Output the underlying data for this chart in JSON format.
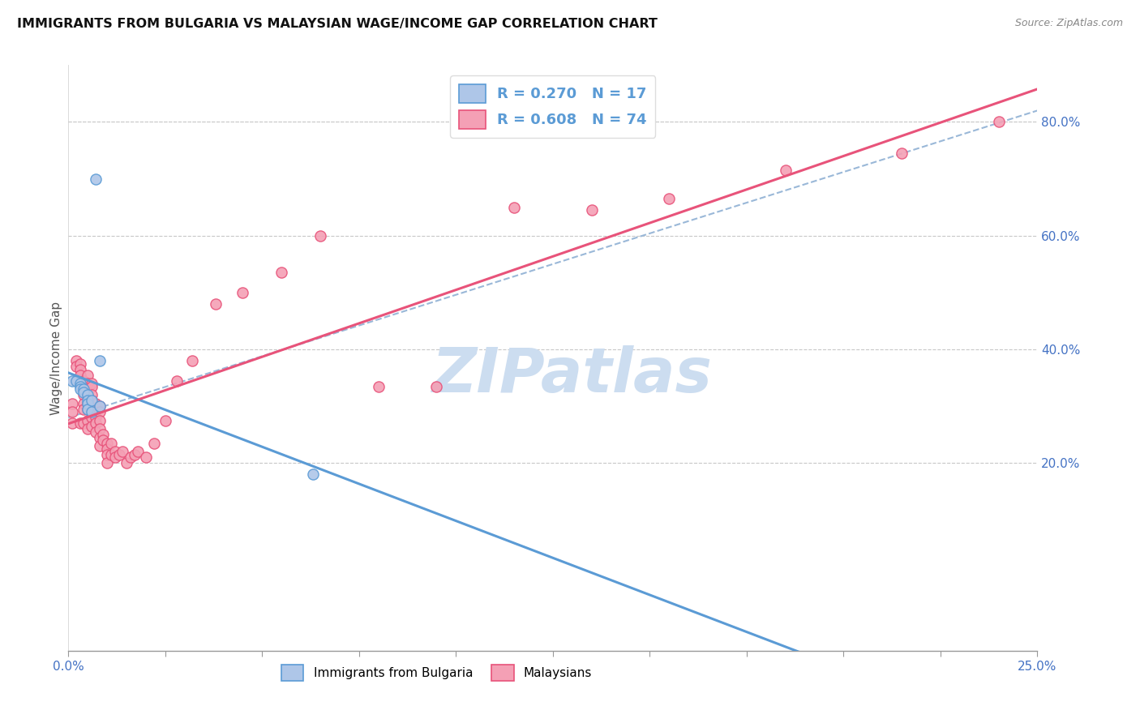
{
  "title": "IMMIGRANTS FROM BULGARIA VS MALAYSIAN WAGE/INCOME GAP CORRELATION CHART",
  "source": "Source: ZipAtlas.com",
  "ylabel": "Wage/Income Gap",
  "xlim": [
    0.0,
    0.25
  ],
  "ylim": [
    -0.13,
    0.9
  ],
  "xticks": [
    0.0,
    0.025,
    0.05,
    0.075,
    0.1,
    0.125,
    0.15,
    0.175,
    0.2,
    0.225,
    0.25
  ],
  "xticklabels": [
    "0.0%",
    "",
    "",
    "",
    "",
    "",
    "",
    "",
    "",
    "",
    "25.0%"
  ],
  "yticks_right": [
    0.2,
    0.4,
    0.6,
    0.8
  ],
  "yticklabels_right": [
    "20.0%",
    "40.0%",
    "60.0%",
    "80.0%"
  ],
  "ytick_color": "#4472c4",
  "xtick_color": "#4472c4",
  "grid_color": "#c8c8c8",
  "background_color": "#ffffff",
  "legend_R1": "R = 0.270",
  "legend_N1": "N = 17",
  "legend_R2": "R = 0.608",
  "legend_N2": "N = 74",
  "legend_color1": "#aec6e8",
  "legend_color2": "#f4a0b5",
  "blue_color": "#5b9bd5",
  "pink_color": "#e8537a",
  "dashed_color": "#9ab8d8",
  "watermark_color": "#ccddf0",
  "bulgaria_x": [
    0.001,
    0.002,
    0.003,
    0.003,
    0.003,
    0.004,
    0.004,
    0.005,
    0.005,
    0.005,
    0.005,
    0.006,
    0.006,
    0.007,
    0.008,
    0.008,
    0.063
  ],
  "bulgaria_y": [
    0.345,
    0.345,
    0.34,
    0.335,
    0.33,
    0.33,
    0.325,
    0.32,
    0.31,
    0.305,
    0.295,
    0.31,
    0.29,
    0.7,
    0.38,
    0.3,
    0.18
  ],
  "malaysia_x": [
    0.001,
    0.001,
    0.001,
    0.002,
    0.002,
    0.002,
    0.003,
    0.003,
    0.003,
    0.003,
    0.003,
    0.004,
    0.004,
    0.004,
    0.004,
    0.004,
    0.004,
    0.005,
    0.005,
    0.005,
    0.005,
    0.005,
    0.005,
    0.005,
    0.006,
    0.006,
    0.006,
    0.006,
    0.006,
    0.006,
    0.007,
    0.007,
    0.007,
    0.007,
    0.007,
    0.008,
    0.008,
    0.008,
    0.008,
    0.008,
    0.008,
    0.009,
    0.009,
    0.01,
    0.01,
    0.01,
    0.01,
    0.011,
    0.011,
    0.012,
    0.012,
    0.013,
    0.014,
    0.015,
    0.016,
    0.017,
    0.018,
    0.02,
    0.022,
    0.025,
    0.028,
    0.032,
    0.038,
    0.045,
    0.055,
    0.065,
    0.08,
    0.095,
    0.115,
    0.135,
    0.155,
    0.185,
    0.215,
    0.24
  ],
  "malaysia_y": [
    0.305,
    0.29,
    0.27,
    0.38,
    0.37,
    0.345,
    0.375,
    0.365,
    0.355,
    0.34,
    0.27,
    0.345,
    0.33,
    0.32,
    0.305,
    0.295,
    0.27,
    0.355,
    0.34,
    0.32,
    0.305,
    0.295,
    0.275,
    0.26,
    0.34,
    0.335,
    0.32,
    0.31,
    0.28,
    0.265,
    0.305,
    0.295,
    0.28,
    0.27,
    0.255,
    0.3,
    0.29,
    0.275,
    0.26,
    0.245,
    0.23,
    0.25,
    0.24,
    0.235,
    0.225,
    0.215,
    0.2,
    0.235,
    0.215,
    0.22,
    0.21,
    0.215,
    0.22,
    0.2,
    0.21,
    0.215,
    0.22,
    0.21,
    0.235,
    0.275,
    0.345,
    0.38,
    0.48,
    0.5,
    0.535,
    0.6,
    0.335,
    0.335,
    0.65,
    0.645,
    0.665,
    0.715,
    0.745,
    0.8
  ]
}
